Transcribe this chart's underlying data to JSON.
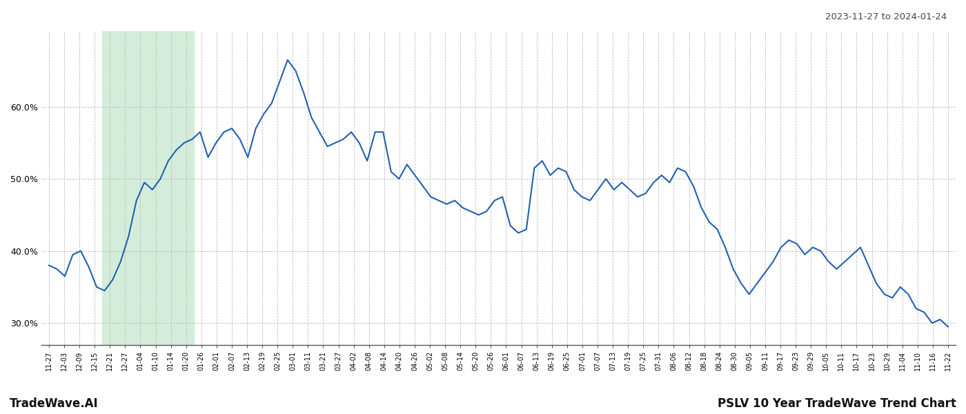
{
  "title_right": "2023-11-27 to 2024-01-24",
  "footer_left": "TradeWave.AI",
  "footer_right": "PSLV 10 Year TradeWave Trend Chart",
  "x_labels": [
    "11-27",
    "12-03",
    "12-09",
    "12-15",
    "12-21",
    "12-27",
    "01-04",
    "01-10",
    "01-14",
    "01-20",
    "01-26",
    "02-01",
    "02-07",
    "02-13",
    "02-19",
    "02-25",
    "03-01",
    "03-11",
    "03-21",
    "03-27",
    "04-02",
    "04-08",
    "04-14",
    "04-20",
    "04-26",
    "05-02",
    "05-08",
    "05-14",
    "05-20",
    "05-26",
    "06-01",
    "06-07",
    "06-13",
    "06-19",
    "06-25",
    "07-01",
    "07-07",
    "07-13",
    "07-19",
    "07-25",
    "07-31",
    "08-06",
    "08-12",
    "08-18",
    "08-24",
    "08-30",
    "09-05",
    "09-11",
    "09-17",
    "09-23",
    "09-29",
    "10-05",
    "10-11",
    "10-17",
    "10-23",
    "10-29",
    "11-04",
    "11-10",
    "11-16",
    "11-22"
  ],
  "highlight_start_label": "12-21",
  "highlight_end_label": "01-20",
  "y_ticks": [
    30.0,
    40.0,
    50.0,
    60.0
  ],
  "y_min": 27.0,
  "y_max": 70.5,
  "line_color": "#2060b0",
  "line_width": 1.5,
  "highlight_color": "#d4edda",
  "background_color": "#ffffff",
  "grid_color": "#bbbbbb",
  "values": [
    38.0,
    37.5,
    36.5,
    39.5,
    40.0,
    37.8,
    35.0,
    34.5,
    36.0,
    38.5,
    42.0,
    47.0,
    49.5,
    48.5,
    50.0,
    52.5,
    54.0,
    55.0,
    55.5,
    56.5,
    53.0,
    55.0,
    56.5,
    57.0,
    55.5,
    53.0,
    57.0,
    59.0,
    60.5,
    63.5,
    66.5,
    65.0,
    62.0,
    58.5,
    56.5,
    54.5,
    55.0,
    55.5,
    56.5,
    55.0,
    52.5,
    56.5,
    56.5,
    51.0,
    50.0,
    52.0,
    50.5,
    49.0,
    47.5,
    47.0,
    46.5,
    47.0,
    46.0,
    45.5,
    45.0,
    45.5,
    47.0,
    47.5,
    43.5,
    42.5,
    43.0,
    51.5,
    52.5,
    50.5,
    51.5,
    51.0,
    48.5,
    47.5,
    47.0,
    48.5,
    50.0,
    48.5,
    49.5,
    48.5,
    47.5,
    48.0,
    49.5,
    50.5,
    49.5,
    51.5,
    51.0,
    49.0,
    46.0,
    44.0,
    43.0,
    40.5,
    37.5,
    35.5,
    34.0,
    35.5,
    37.0,
    38.5,
    40.5,
    41.5,
    41.0,
    39.5,
    40.5,
    40.0,
    38.5,
    37.5,
    38.5,
    39.5,
    40.5,
    38.0,
    35.5,
    34.0,
    33.5,
    35.0,
    34.0,
    32.0,
    31.5,
    30.0,
    30.5,
    29.5
  ]
}
